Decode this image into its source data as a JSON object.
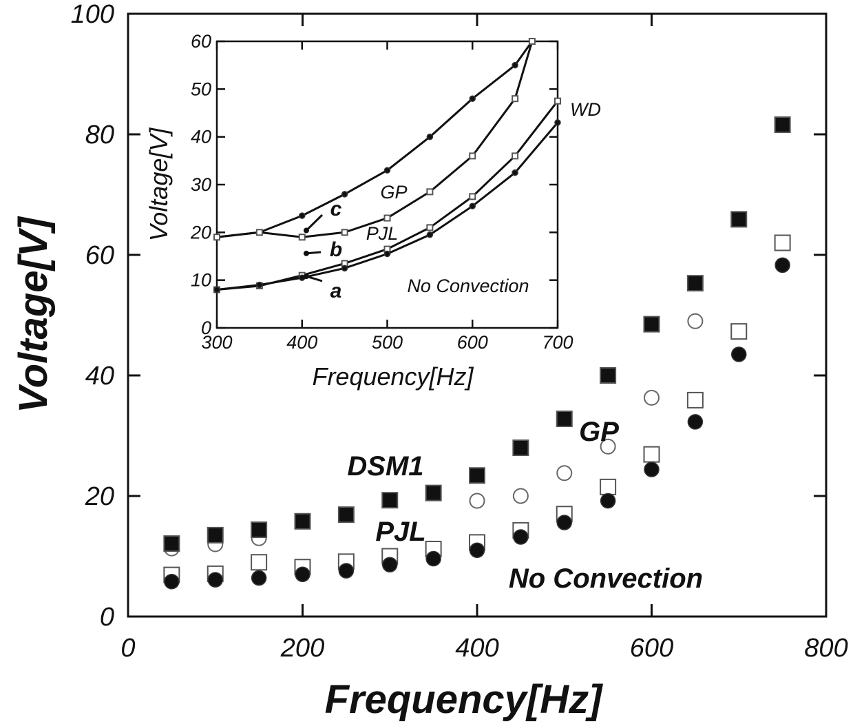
{
  "chart_data": [
    {
      "type": "scatter",
      "xlabel": "Frequency[Hz]",
      "ylabel": "Voltage[V]",
      "xlim": [
        0,
        800
      ],
      "ylim": [
        0,
        100
      ],
      "xticks": [
        "0",
        "200",
        "400",
        "600",
        "800"
      ],
      "yticks": [
        "0",
        "20",
        "40",
        "60",
        "80",
        "100"
      ],
      "grid": false,
      "series": [
        {
          "name": "DSM1",
          "marker": "filled-square",
          "x": [
            50,
            100,
            150,
            200,
            250,
            300,
            350,
            400,
            450,
            500,
            550,
            600,
            650,
            700,
            750
          ],
          "y": [
            12.1,
            13.5,
            14.4,
            15.8,
            16.9,
            19.3,
            20.5,
            23.4,
            28.0,
            32.8,
            40.0,
            48.5,
            55.3,
            65.9,
            81.6
          ]
        },
        {
          "name": "GP",
          "marker": "open-circle",
          "x": [
            50,
            100,
            150,
            400,
            450,
            500,
            550,
            600,
            650
          ],
          "y": [
            11.3,
            12.0,
            13.0,
            19.2,
            20.0,
            23.8,
            28.2,
            36.3,
            49.0
          ]
        },
        {
          "name": "PJL",
          "marker": "open-square",
          "x": [
            50,
            100,
            150,
            200,
            250,
            300,
            350,
            400,
            450,
            500,
            550,
            600,
            650,
            700,
            750
          ],
          "y": [
            6.9,
            7.1,
            9.0,
            8.2,
            9.1,
            10.0,
            11.2,
            12.3,
            14.3,
            17.0,
            21.5,
            26.9,
            35.9,
            47.3,
            62.0
          ]
        },
        {
          "name": "No Convection",
          "marker": "filled-circle",
          "x": [
            50,
            100,
            150,
            200,
            250,
            300,
            350,
            400,
            450,
            500,
            550,
            600,
            650,
            700,
            750
          ],
          "y": [
            5.8,
            6.1,
            6.4,
            7.0,
            7.6,
            8.6,
            9.6,
            11.0,
            13.2,
            15.6,
            19.2,
            24.4,
            32.3,
            43.5,
            58.3
          ]
        }
      ]
    },
    {
      "type": "line",
      "xlabel": "Frequency[Hz]",
      "ylabel": "Voltage[V]",
      "xlim": [
        300,
        700
      ],
      "ylim": [
        0,
        60
      ],
      "xticks": [
        "300",
        "400",
        "500",
        "600",
        "700"
      ],
      "yticks": [
        "0",
        "10",
        "20",
        "30",
        "40",
        "50",
        "60"
      ],
      "grid": false,
      "series": [
        {
          "name": "GP",
          "marker": "filled-circle",
          "x": [
            300,
            350,
            400,
            450,
            500,
            550,
            600,
            650,
            670
          ],
          "y": [
            19.0,
            20.0,
            23.5,
            28.0,
            33.0,
            40.0,
            48.0,
            55.0,
            60.0
          ]
        },
        {
          "name": "PJL",
          "marker": "open-square",
          "x": [
            300,
            350,
            400,
            450,
            500,
            550,
            600,
            650,
            670
          ],
          "y": [
            19.0,
            20.0,
            19.0,
            20.0,
            23.0,
            28.5,
            36.0,
            48.0,
            60.0
          ]
        },
        {
          "name": "WD",
          "marker": "open-square",
          "x": [
            300,
            350,
            400,
            450,
            500,
            550,
            600,
            650,
            700
          ],
          "y": [
            8.0,
            8.8,
            11.0,
            13.5,
            16.5,
            21.0,
            27.5,
            36.0,
            47.5
          ]
        },
        {
          "name": "No Convection",
          "marker": "filled-circle",
          "x": [
            300,
            350,
            400,
            450,
            500,
            550,
            600,
            650,
            700
          ],
          "y": [
            8.0,
            9.0,
            10.5,
            12.5,
            15.5,
            19.5,
            25.5,
            32.5,
            43.0
          ]
        }
      ],
      "annotations": [
        "a",
        "b",
        "c"
      ]
    }
  ]
}
